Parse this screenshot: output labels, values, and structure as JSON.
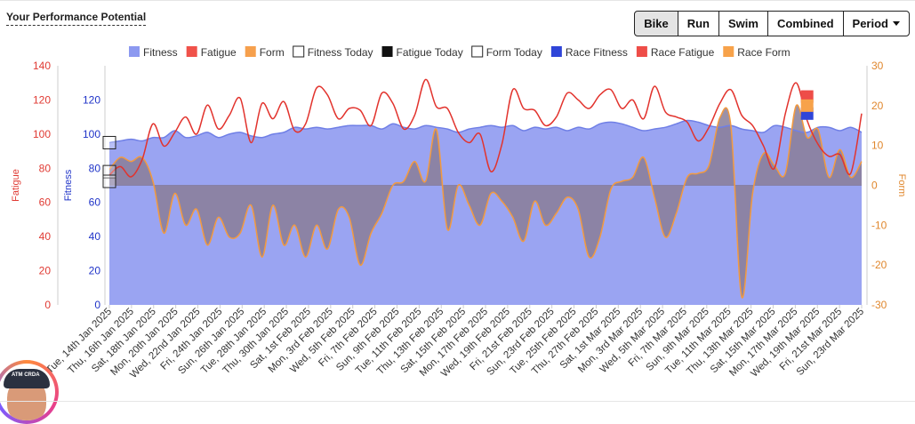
{
  "header": {
    "title": "Your Performance Potential",
    "buttons": [
      {
        "label": "Bike",
        "active": true
      },
      {
        "label": "Run",
        "active": false
      },
      {
        "label": "Swim",
        "active": false
      },
      {
        "label": "Combined",
        "active": false
      },
      {
        "label": "Period",
        "active": false,
        "dropdown": true
      }
    ]
  },
  "avatar": {
    "cap_text": "ATM CRDA"
  },
  "chart_data": {
    "type": "area",
    "legend_position": "top",
    "grid": false,
    "legend": [
      {
        "name": "Fitness",
        "swatch": "fill",
        "color": "#8c99f0"
      },
      {
        "name": "Fatigue",
        "swatch": "fill",
        "color": "#f0524a"
      },
      {
        "name": "Form",
        "swatch": "fill",
        "color": "#f6a04d"
      },
      {
        "name": "Fitness Today",
        "swatch": "outline",
        "color": "#222222"
      },
      {
        "name": "Fatigue Today",
        "swatch": "fill",
        "color": "#111111"
      },
      {
        "name": "Form Today",
        "swatch": "outline",
        "color": "#222222"
      },
      {
        "name": "Race Fitness",
        "swatch": "fill",
        "color": "#2f45d8"
      },
      {
        "name": "Race Fatigue",
        "swatch": "fill",
        "color": "#ee4d48"
      },
      {
        "name": "Race Form",
        "swatch": "fill",
        "color": "#f7a24a"
      }
    ],
    "colors": {
      "fitness_fill": "#9aa4f2",
      "fitness_line": "#6f7fe6",
      "fatigue": "#e2332d",
      "form_line": "#f39a3f",
      "form_fill": "#8a7e98",
      "fatigue_axis": "#e03a33",
      "fitness_axis": "#1f33c8",
      "form_axis": "#e0872d"
    },
    "axes": {
      "fatigue": {
        "label": "Fatigue",
        "min": 0,
        "max": 140,
        "ticks": [
          0,
          20,
          40,
          60,
          80,
          100,
          120,
          140
        ]
      },
      "fitness": {
        "label": "Fitness",
        "min": 0,
        "max": 140,
        "ticks": [
          0,
          20,
          40,
          60,
          80,
          100,
          120
        ]
      },
      "form": {
        "label": "Form",
        "min": -30,
        "max": 30,
        "ticks": [
          -30,
          -20,
          -10,
          0,
          10,
          20,
          30
        ]
      }
    },
    "x_labels": [
      "Tue, 14th Jan 2025",
      "Thu, 16th Jan 2025",
      "Sat, 18th Jan 2025",
      "Mon, 20th Jan 2025",
      "Wed, 22nd Jan 2025",
      "Fri, 24th Jan 2025",
      "Sun, 26th Jan 2025",
      "Tue, 28th Jan 2025",
      "Thu, 30th Jan 2025",
      "Sat, 1st Feb 2025",
      "Mon, 3rd Feb 2025",
      "Wed, 5th Feb 2025",
      "Fri, 7th Feb 2025",
      "Sun, 9th Feb 2025",
      "Tue, 11th Feb 2025",
      "Thu, 13th Feb 2025",
      "Sat, 15th Feb 2025",
      "Mon, 17th Feb 2025",
      "Wed, 19th Feb 2025",
      "Fri, 21st Feb 2025",
      "Sun, 23rd Feb 2025",
      "Tue, 25th Feb 2025",
      "Thu, 27th Feb 2025",
      "Sat, 1st Mar 2025",
      "Mon, 3rd Mar 2025",
      "Wed, 5th Mar 2025",
      "Fri, 7th Mar 2025",
      "Sun, 9th Mar 2025",
      "Tue, 11th Mar 2025",
      "Thu, 13th Mar 2025",
      "Sat, 15th Mar 2025",
      "Mon, 17th Mar 2025",
      "Wed, 19th Mar 2025",
      "Fri, 21st Mar 2025",
      "Sun, 23rd Mar 2025"
    ],
    "series": [
      {
        "name": "Fitness",
        "axis": "fitness",
        "values": [
          95,
          96,
          97,
          96,
          98,
          98,
          102,
          98,
          99,
          101,
          98,
          100,
          101,
          99,
          98,
          100,
          101,
          104,
          103,
          104,
          103,
          104,
          105,
          105,
          105,
          103,
          106,
          104,
          103,
          105,
          104,
          103,
          101,
          103,
          104,
          105,
          104,
          105,
          102,
          104,
          103,
          104,
          102,
          104,
          103,
          106,
          107,
          106,
          104,
          102,
          103,
          104,
          106,
          108,
          107,
          105,
          104,
          105,
          103,
          102,
          101,
          105,
          104,
          102,
          101,
          104,
          104,
          102,
          104,
          101
        ]
      },
      {
        "name": "Fatigue",
        "axis": "fatigue",
        "values": [
          76,
          81,
          75,
          85,
          106,
          93,
          101,
          110,
          100,
          117,
          103,
          111,
          121,
          95,
          118,
          109,
          119,
          102,
          106,
          127,
          123,
          109,
          115,
          114,
          105,
          124,
          118,
          103,
          111,
          132,
          116,
          115,
          101,
          95,
          100,
          78,
          94,
          126,
          115,
          114,
          105,
          110,
          124,
          120,
          115,
          123,
          126,
          115,
          120,
          109,
          128,
          113,
          110,
          107,
          96,
          104,
          118,
          126,
          111,
          105,
          93,
          80,
          112,
          130,
          108,
          94,
          87,
          88,
          77,
          112
        ]
      },
      {
        "name": "Form",
        "axis": "form",
        "values": [
          4,
          7,
          6,
          7,
          1,
          -12,
          -2,
          -10,
          -6,
          -15,
          -8,
          -13,
          -12,
          -5,
          -18,
          -5,
          -15,
          -10,
          -18,
          -10,
          -16,
          -6,
          -8,
          -20,
          -12,
          -7,
          0,
          1,
          6,
          1,
          14,
          -11,
          0,
          -5,
          -10,
          -2,
          -4,
          -8,
          -14,
          -4,
          -10,
          -7,
          -3,
          -6,
          -18,
          -13,
          -1,
          1,
          2,
          7,
          -3,
          -13,
          -7,
          2,
          3,
          5,
          17,
          15,
          -28,
          -2,
          8,
          5,
          3,
          20,
          12,
          14,
          2,
          9,
          2,
          6
        ]
      }
    ],
    "markers": {
      "today": {
        "date_index": 0,
        "fitness": 95,
        "fatigue": 78,
        "form": 1
      },
      "race": {
        "date_index": 64,
        "fitness": 112,
        "fatigue": 122,
        "form": 20
      }
    }
  }
}
